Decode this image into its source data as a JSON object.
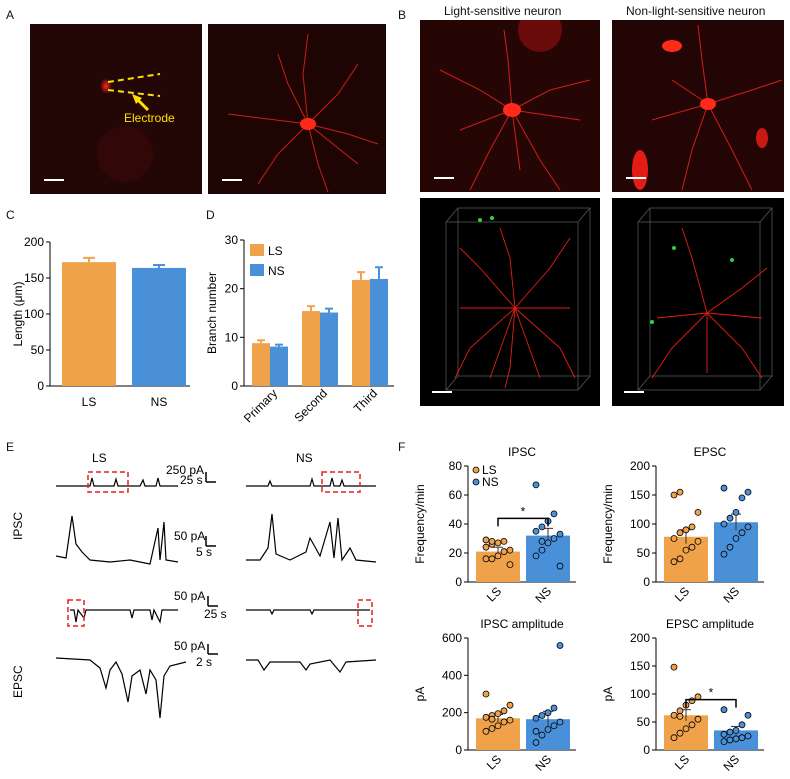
{
  "panel_letters": {
    "a": "A",
    "b": "B",
    "c": "C",
    "d": "D",
    "e": "E",
    "f": "F"
  },
  "panel_a": {
    "electrode_label": "Electrode"
  },
  "panel_b": {
    "col1_title": "Light-sensitive neuron",
    "col2_title": "Non-light-sensitive neuron"
  },
  "colors": {
    "ls": "#f0a24a",
    "ns": "#4a90d9",
    "red_fluor": "#e8201c",
    "yellow": "#ffe100"
  },
  "chart_data": [
    {
      "id": "C",
      "type": "bar",
      "title": "",
      "xlabel": "",
      "ylabel": "Length (μm)",
      "categories": [
        "LS",
        "NS"
      ],
      "values": [
        172,
        164
      ],
      "errors": [
        6,
        4
      ],
      "ylim": [
        0,
        200
      ],
      "yticks": [
        0,
        50,
        100,
        150,
        200
      ]
    },
    {
      "id": "D",
      "type": "bar",
      "title": "",
      "xlabel": "",
      "ylabel": "Branch number",
      "categories": [
        "Primary",
        "Second",
        "Third"
      ],
      "series": [
        {
          "name": "LS",
          "values": [
            8.8,
            15.4,
            21.8
          ],
          "errors": [
            0.6,
            1.0,
            1.6
          ]
        },
        {
          "name": "NS",
          "values": [
            8.1,
            15.1,
            22.0
          ],
          "errors": [
            0.4,
            0.8,
            2.4
          ]
        }
      ],
      "ylim": [
        0,
        30
      ],
      "yticks": [
        0,
        10,
        20,
        30
      ],
      "legend": "top-left"
    },
    {
      "id": "F-IPSC",
      "type": "bar",
      "title": "IPSC",
      "ylabel": "Frequency/min",
      "categories": [
        "LS",
        "NS"
      ],
      "values": [
        21,
        32
      ],
      "errors": [
        3,
        5
      ],
      "ylim": [
        0,
        80
      ],
      "yticks": [
        0,
        20,
        40,
        60,
        80
      ],
      "points": [
        [
          16,
          16,
          18,
          21,
          22,
          24,
          26,
          27,
          28,
          12,
          29,
          28
        ],
        [
          18,
          22,
          27,
          30,
          33,
          35,
          38,
          42,
          47,
          11,
          67,
          28
        ]
      ],
      "significance": "*",
      "legend": [
        "LS",
        "NS"
      ]
    },
    {
      "id": "F-EPSC",
      "type": "bar",
      "title": "EPSC",
      "ylabel": "Frequency/min",
      "categories": [
        "LS",
        "NS"
      ],
      "values": [
        78,
        103
      ],
      "errors": [
        12,
        14
      ],
      "ylim": [
        0,
        200
      ],
      "yticks": [
        0,
        50,
        100,
        150,
        200
      ],
      "points": [
        [
          35,
          40,
          55,
          60,
          70,
          75,
          85,
          90,
          95,
          120,
          150,
          155
        ],
        [
          48,
          60,
          75,
          85,
          95,
          100,
          110,
          120,
          145,
          155,
          162
        ]
      ],
      "significance": ""
    },
    {
      "id": "F-IPSCamp",
      "type": "bar",
      "title": "IPSC amplitude",
      "ylabel": "pA",
      "categories": [
        "LS",
        "NS"
      ],
      "values": [
        170,
        165
      ],
      "errors": [
        20,
        42
      ],
      "ylim": [
        0,
        600
      ],
      "yticks": [
        0,
        200,
        400,
        600
      ],
      "points": [
        [
          100,
          115,
          130,
          150,
          160,
          175,
          185,
          195,
          210,
          240,
          300,
          165
        ],
        [
          40,
          80,
          110,
          130,
          150,
          170,
          185,
          200,
          225,
          560,
          100
        ]
      ],
      "significance": ""
    },
    {
      "id": "F-EPSCamp",
      "type": "bar",
      "title": "EPSC amplitude",
      "ylabel": "pA",
      "categories": [
        "LS",
        "NS"
      ],
      "values": [
        62,
        35
      ],
      "errors": [
        10,
        7
      ],
      "ylim": [
        0,
        200
      ],
      "yticks": [
        0,
        50,
        100,
        150,
        200
      ],
      "points": [
        [
          22,
          30,
          38,
          45,
          55,
          62,
          70,
          80,
          88,
          95,
          148,
          60
        ],
        [
          15,
          18,
          20,
          22,
          25,
          28,
          32,
          35,
          45,
          62,
          72
        ]
      ],
      "significance": "*"
    }
  ],
  "panel_e": {
    "col_ls": "LS",
    "col_ns": "NS",
    "row_ipsc": "IPSC",
    "row_epsc": "EPSC",
    "scale_ipsc_top_y": "250 pA",
    "scale_ipsc_top_x": "25 s",
    "scale_ipsc_zoom_y": "50 pA",
    "scale_ipsc_zoom_x": "5 s",
    "scale_epsc_top_y": "50 pA",
    "scale_epsc_top_x": "25 s",
    "scale_epsc_zoom_y": "50 pA",
    "scale_epsc_zoom_x": "2 s"
  }
}
